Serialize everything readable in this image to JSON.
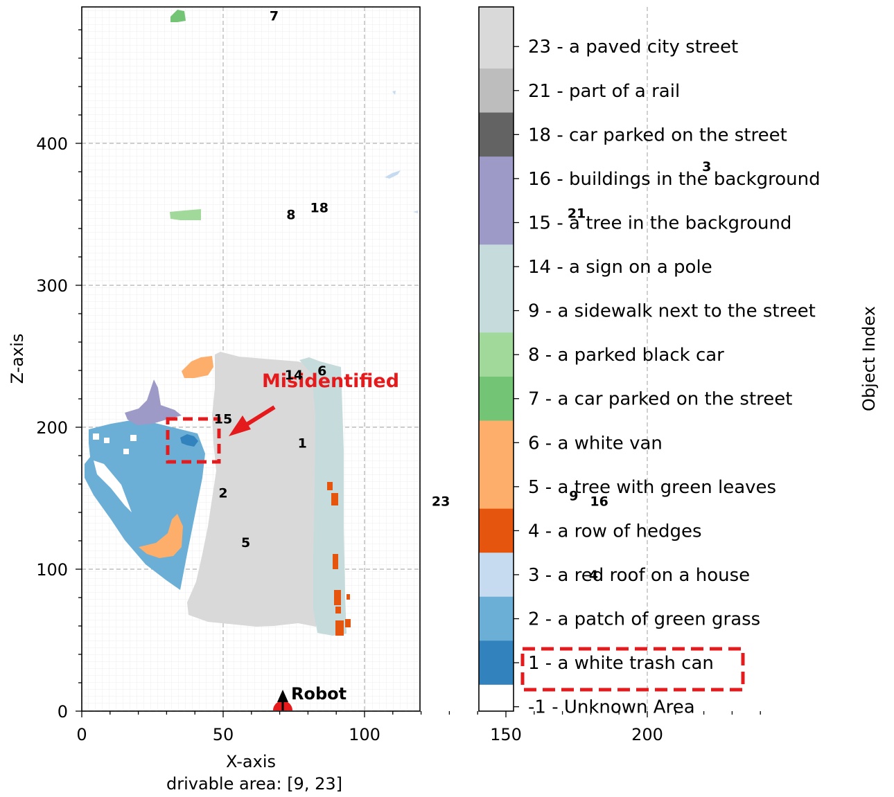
{
  "chart_data": {
    "type": "scatter",
    "subtype": "top-down semantic occupancy map with categorical colorbar",
    "xlabel": "X-axis",
    "ylabel": "Z-axis",
    "subtitle": "drivable area: [9, 23]",
    "xlim": [
      0,
      240
    ],
    "ylim": [
      0,
      495
    ],
    "xticks": [
      0,
      50,
      100,
      150,
      200
    ],
    "yticks": [
      0,
      100,
      200,
      300,
      400
    ],
    "grid": true,
    "colorbar_label": "Object Index",
    "legend": [
      {
        "index": 23,
        "label": "23 - a paved city street",
        "color": "#d9d9d9"
      },
      {
        "index": 21,
        "label": "21 - part of a rail",
        "color": "#bdbdbd"
      },
      {
        "index": 18,
        "label": "18 - car parked on the street",
        "color": "#636363"
      },
      {
        "index": 16,
        "label": "16 - buildings in the background",
        "color": "#9e9ac8"
      },
      {
        "index": 15,
        "label": "15 - a tree in the background",
        "color": "#9e9ac8"
      },
      {
        "index": 14,
        "label": "14 - a sign on a pole",
        "color": "#c6dbdb"
      },
      {
        "index": 9,
        "label": "9 - a sidewalk next to the street",
        "color": "#c6dbdb"
      },
      {
        "index": 8,
        "label": "8 - a parked black car",
        "color": "#a1d99b"
      },
      {
        "index": 7,
        "label": "7 - a car parked on the street",
        "color": "#74c476"
      },
      {
        "index": 6,
        "label": "6 - a white van",
        "color": "#fdae6b"
      },
      {
        "index": 5,
        "label": "5 - a tree with green leaves",
        "color": "#fdae6b"
      },
      {
        "index": 4,
        "label": "4 - a row of hedges",
        "color": "#e6550d"
      },
      {
        "index": 3,
        "label": "3 - a red roof on a house",
        "color": "#c6dbef"
      },
      {
        "index": 2,
        "label": "2 - a patch of green grass",
        "color": "#6baed6"
      },
      {
        "index": 1,
        "label": "1 - a white trash can",
        "color": "#3182bd"
      },
      {
        "index": -1,
        "label": "-1 - Unknown Area",
        "color": "#ffffff"
      }
    ],
    "region_labels": [
      {
        "text": "7",
        "x": 68,
        "y": 490
      },
      {
        "text": "3",
        "x": 221,
        "y": 384
      },
      {
        "text": "18",
        "x": 84,
        "y": 355
      },
      {
        "text": "8",
        "x": 74,
        "y": 350
      },
      {
        "text": "21",
        "x": 175,
        "y": 351
      },
      {
        "text": "14",
        "x": 75,
        "y": 237
      },
      {
        "text": "6",
        "x": 85,
        "y": 240
      },
      {
        "text": "15",
        "x": 50,
        "y": 206
      },
      {
        "text": "1",
        "x": 78,
        "y": 189
      },
      {
        "text": "2",
        "x": 50,
        "y": 154
      },
      {
        "text": "23",
        "x": 127,
        "y": 148
      },
      {
        "text": "9",
        "x": 174,
        "y": 152
      },
      {
        "text": "16",
        "x": 183,
        "y": 148
      },
      {
        "text": "5",
        "x": 58,
        "y": 119
      },
      {
        "text": "4",
        "x": 181,
        "y": 96
      }
    ],
    "robot": {
      "label": "Robot",
      "x": 142,
      "y": 5
    }
  },
  "annotations": {
    "misidentified_text": "Misidentified",
    "highlight_color": "#e41a1c"
  },
  "colors": {
    "street": "#d9d9d9",
    "grass": "#6baed6",
    "tree_bg": "#9e9ac8",
    "sidewalk": "#c6dbdb",
    "orange_light": "#fdae6b",
    "hedges": "#e6550d",
    "car_green": "#74c476",
    "car_light_green": "#a1d99b",
    "roof": "#c6dbef",
    "trash_can": "#3182bd",
    "robot": "#e41a1c"
  }
}
